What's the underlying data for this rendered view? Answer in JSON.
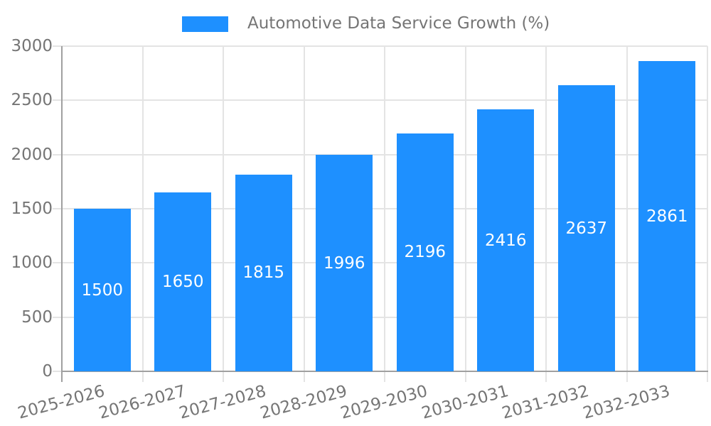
{
  "chart_data": {
    "type": "bar",
    "title": "",
    "legend": {
      "label": "Automotive Data Service Growth (%)",
      "position": "top"
    },
    "categories": [
      "2025-2026",
      "2026-2027",
      "2027-2028",
      "2028-2029",
      "2029-2030",
      "2030-2031",
      "2031-2032",
      "2032-2033"
    ],
    "series": [
      {
        "name": "Automotive Data Service Growth (%)",
        "values": [
          1500,
          1650,
          1815,
          1996,
          2196,
          2416,
          2637,
          2861
        ]
      }
    ],
    "bar_value_labels": [
      "1500",
      "1650",
      "1815",
      "1996",
      "2196",
      "2416",
      "2637",
      "2861"
    ],
    "xlabel": "",
    "ylabel": "",
    "ylim": [
      0,
      3000
    ],
    "yticks": [
      0,
      500,
      1000,
      1500,
      2000,
      2500,
      3000
    ],
    "ytick_labels": [
      "0",
      "500",
      "1000",
      "1500",
      "2000",
      "2500",
      "3000"
    ],
    "x_label_rotation_deg": -15,
    "grid": true,
    "colors": {
      "bar": "#1e90ff",
      "value_label": "#ffffff",
      "tick_text": "#757575",
      "grid": "#e4e4e4",
      "axis": "#a0a0a0",
      "background": "#ffffff"
    }
  }
}
